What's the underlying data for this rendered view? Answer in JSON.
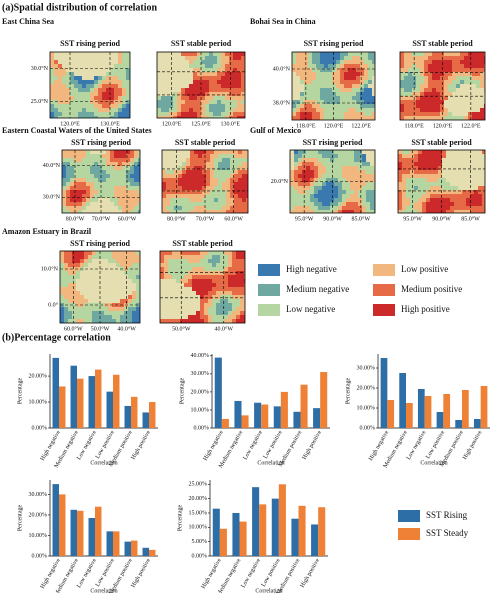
{
  "panel_a_title": "(a)Spatial distribution of correlation",
  "panel_b_title": "(b)Percentage correlation",
  "maps": [
    {
      "region": "East China Sea",
      "panels": [
        {
          "title": "SST rising period",
          "xticks": [
            "120.0°E",
            "130.0°E"
          ],
          "yticks": [
            "30.0°N",
            "25.0°N"
          ]
        },
        {
          "title": "SST stable period",
          "xticks": [
            "120.0°E",
            "125.0°E",
            "130.0°E"
          ]
        }
      ]
    },
    {
      "region": "Bohai Sea in China",
      "panels": [
        {
          "title": "SST rising period",
          "xticks": [
            "118.0°E",
            "120.0°E",
            "122.0°E"
          ],
          "yticks": [
            "40.0°N",
            "38.0°N"
          ]
        },
        {
          "title": "SST stable period",
          "xticks": [
            "118.0°E",
            "120.0°E",
            "122.0°E"
          ]
        }
      ]
    },
    {
      "region": "Eastern Coastal Waters of the United States",
      "panels": [
        {
          "title": "SST rising period",
          "xticks": [
            "80.0°W",
            "70.0°W",
            "60.0°W"
          ],
          "yticks": [
            "40.0°N",
            "30.0°N"
          ]
        },
        {
          "title": "SST stable period",
          "xticks": [
            "80.0°W",
            "70.0°W",
            "60.0°W"
          ]
        }
      ]
    },
    {
      "region": "Gulf of Mexico",
      "panels": [
        {
          "title": "SST rising period",
          "xticks": [
            "95.0°W",
            "90.0°W",
            "85.0°W"
          ],
          "yticks": [
            "20.0°N"
          ]
        },
        {
          "title": "SST stable period",
          "xticks": [
            "95.0°W",
            "90.0°W",
            "85.0°W"
          ]
        }
      ]
    },
    {
      "region": "Amazon Estuary in Brazil",
      "panels": [
        {
          "title": "SST rising period",
          "xticks": [
            "60.0°W",
            "50.0°W",
            "40.0°W"
          ],
          "yticks": [
            "10.0°N",
            "0.0°"
          ]
        },
        {
          "title": "SST stable period",
          "xticks": [
            "50.0°W",
            "40.0°W"
          ]
        }
      ]
    }
  ],
  "map_legend": [
    {
      "label": "High negative",
      "color": "#3a78b0"
    },
    {
      "label": "Low positive",
      "color": "#f2b77e"
    },
    {
      "label": "Medium negative",
      "color": "#6fa8a0"
    },
    {
      "label": "Medium positive",
      "color": "#e66a45"
    },
    {
      "label": "Low negative",
      "color": "#b5d6a0"
    },
    {
      "label": "High positive",
      "color": "#cc2a2a"
    }
  ],
  "chart_data": [
    {
      "type": "bar",
      "xlabel": "Correlation",
      "ylabel": "Percentage",
      "categories": [
        "High negative",
        "Medium negative",
        "Low negative",
        "Low positive",
        "Medium positive",
        "High positive"
      ],
      "ylim": [
        0,
        28.5
      ],
      "yticks": [
        {
          "value": 0,
          "label": "0.00%"
        },
        {
          "value": 10,
          "label": "10.00%"
        },
        {
          "value": 20,
          "label": "20.00%"
        }
      ],
      "series": [
        {
          "name": "SST Rising",
          "color": "#2e6ea6",
          "values": [
            27,
            24,
            20,
            14,
            8.5,
            6
          ]
        },
        {
          "name": "SST Steady",
          "color": "#ef8136",
          "values": [
            16,
            19,
            22.5,
            20.5,
            12,
            10
          ]
        }
      ]
    },
    {
      "type": "bar",
      "xlabel": "Correlation",
      "ylabel": "Percentage",
      "categories": [
        "High negative",
        "Medium negative",
        "Low negative",
        "Low positive",
        "Medium positive",
        "High positive"
      ],
      "ylim": [
        0,
        41
      ],
      "yticks": [
        {
          "value": 0,
          "label": "0.00%"
        },
        {
          "value": 10,
          "label": "10.00%"
        },
        {
          "value": 20,
          "label": "20.00%"
        },
        {
          "value": 30,
          "label": "30.00%"
        },
        {
          "value": 40,
          "label": "40.00%"
        }
      ],
      "series": [
        {
          "name": "SST Rising",
          "color": "#2e6ea6",
          "values": [
            39,
            15,
            14,
            12,
            9,
            11
          ]
        },
        {
          "name": "SST Steady",
          "color": "#ef8136",
          "values": [
            5,
            7,
            13,
            20,
            24,
            31
          ]
        }
      ]
    },
    {
      "type": "bar",
      "xlabel": "Correlation",
      "ylabel": "Percentage",
      "categories": [
        "High negative",
        "Medium negative",
        "Low negative",
        "Low positive",
        "Medium positive",
        "High positive"
      ],
      "ylim": [
        0,
        37
      ],
      "yticks": [
        {
          "value": 0,
          "label": "0.00%"
        },
        {
          "value": 10,
          "label": "10.00%"
        },
        {
          "value": 20,
          "label": "20.00%"
        },
        {
          "value": 30,
          "label": "30.00%"
        }
      ],
      "series": [
        {
          "name": "SST Rising",
          "color": "#2e6ea6",
          "values": [
            35,
            27.5,
            19.5,
            8,
            4,
            4.5
          ]
        },
        {
          "name": "SST Steady",
          "color": "#ef8136",
          "values": [
            14,
            12.5,
            16,
            17,
            19,
            21
          ]
        }
      ]
    },
    {
      "type": "bar",
      "xlabel": "Correlation",
      "ylabel": "Percentage",
      "categories": [
        "High negative",
        "Medium negative",
        "Low negative",
        "Low positive",
        "Medium positive",
        "High positive"
      ],
      "ylim": [
        0,
        37
      ],
      "yticks": [
        {
          "value": 0,
          "label": "0.00%"
        },
        {
          "value": 10,
          "label": "10.00%"
        },
        {
          "value": 20,
          "label": "20.00%"
        },
        {
          "value": 30,
          "label": "30.00%"
        }
      ],
      "series": [
        {
          "name": "SST Rising",
          "color": "#2e6ea6",
          "values": [
            35,
            22.5,
            18.5,
            12,
            7,
            4
          ]
        },
        {
          "name": "SST Steady",
          "color": "#ef8136",
          "values": [
            30,
            22,
            24,
            12,
            7.5,
            3
          ]
        }
      ]
    },
    {
      "type": "bar",
      "xlabel": "Correlation",
      "ylabel": "Percentage",
      "categories": [
        "High negative",
        "Medium negative",
        "Low negative",
        "Low positive",
        "Medium positive",
        "High positive"
      ],
      "ylim": [
        0,
        26.5
      ],
      "yticks": [
        {
          "value": 0,
          "label": "0.00%"
        },
        {
          "value": 5,
          "label": "5.00%"
        },
        {
          "value": 10,
          "label": "10.00%"
        },
        {
          "value": 15,
          "label": "15.00%"
        },
        {
          "value": 20,
          "label": "20.00%"
        },
        {
          "value": 25,
          "label": "25.00%"
        }
      ],
      "series": [
        {
          "name": "SST Rising",
          "color": "#2e6ea6",
          "values": [
            16.5,
            15,
            24,
            20,
            13,
            11
          ]
        },
        {
          "name": "SST Steady",
          "color": "#ef8136",
          "values": [
            9.5,
            12,
            18,
            25,
            17.5,
            17
          ]
        }
      ]
    }
  ]
}
